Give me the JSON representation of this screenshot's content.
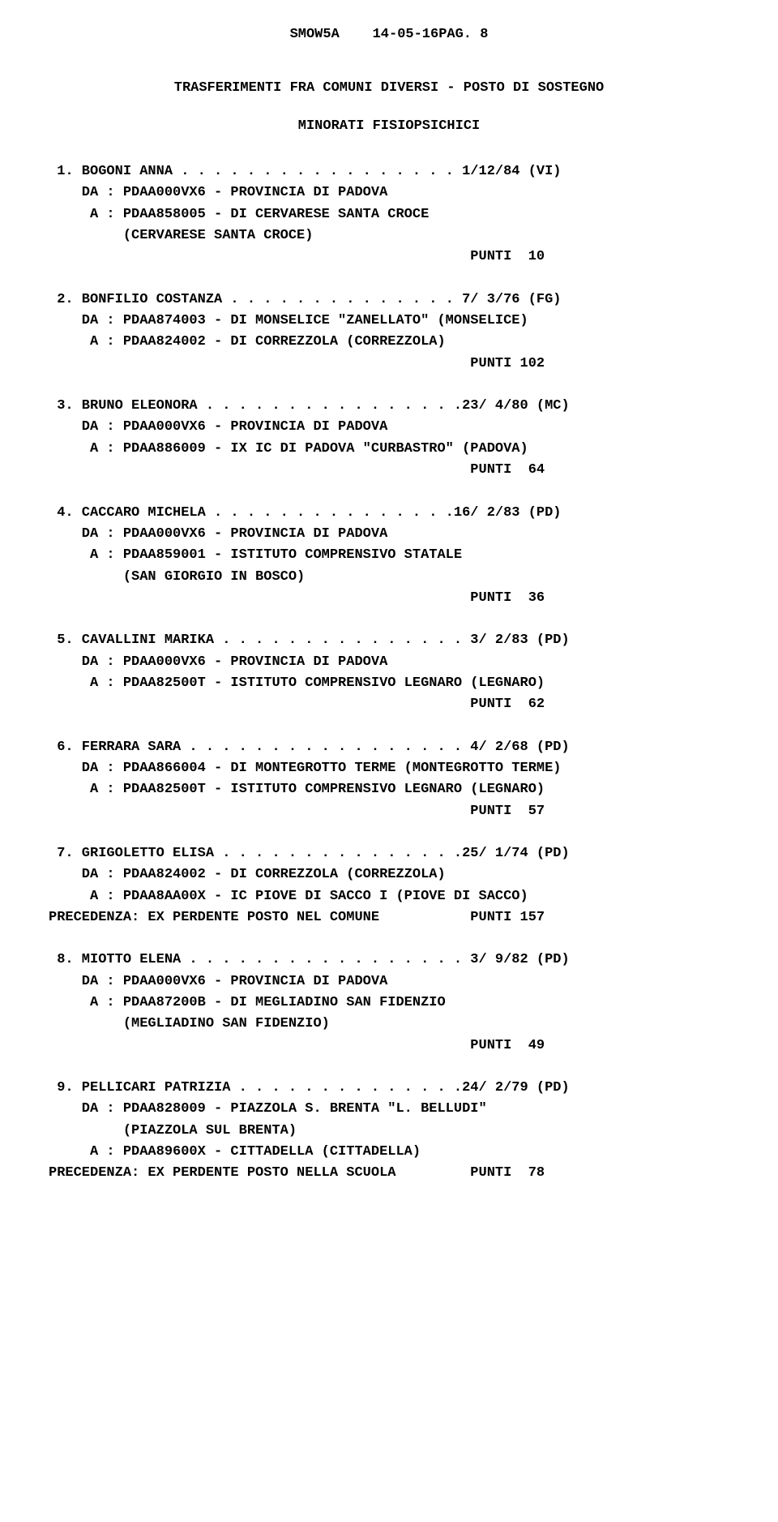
{
  "header": {
    "program": "SMOW5A",
    "date_page": "14-05-16PAG. 8"
  },
  "title": "TRASFERIMENTI FRA COMUNI DIVERSI - POSTO DI SOSTEGNO",
  "subtitle": "MINORATI FISIOPSICHICI",
  "entries": [
    {
      "num": " 1",
      "name": "BOGONI ANNA",
      "dots": " . . . . . . . . . . . . . . . . .",
      "code": " 1/12/84 (VI)",
      "da": "    DA : PDAA000VX6 - PROVINCIA DI PADOVA",
      "a": "     A : PDAA858005 - DI CERVARESE SANTA CROCE",
      "extra": "         (CERVARESE SANTA CROCE)",
      "punti_label": "PUNTI",
      "punti_val": " 10"
    },
    {
      "num": " 2",
      "name": "BONFILIO COSTANZA",
      "dots": " . . . . . . . . . . . . . .",
      "code": " 7/ 3/76 (FG)",
      "da": "    DA : PDAA874003 - DI MONSELICE \"ZANELLATO\" (MONSELICE)",
      "a": "     A : PDAA824002 - DI CORREZZOLA (CORREZZOLA)",
      "extra": "",
      "punti_label": "PUNTI",
      "punti_val": "102"
    },
    {
      "num": " 3",
      "name": "BRUNO ELEONORA",
      "dots": " . . . . . . . . . . . . . . . .",
      "code": "23/ 4/80 (MC)",
      "da": "    DA : PDAA000VX6 - PROVINCIA DI PADOVA",
      "a": "     A : PDAA886009 - IX IC DI PADOVA \"CURBASTRO\" (PADOVA)",
      "extra": "",
      "punti_label": "PUNTI",
      "punti_val": " 64"
    },
    {
      "num": " 4",
      "name": "CACCARO MICHELA",
      "dots": " . . . . . . . . . . . . . . .",
      "code": "16/ 2/83 (PD)",
      "da": "    DA : PDAA000VX6 - PROVINCIA DI PADOVA",
      "a": "     A : PDAA859001 - ISTITUTO COMPRENSIVO STATALE",
      "extra": "         (SAN GIORGIO IN BOSCO)",
      "punti_label": "PUNTI",
      "punti_val": " 36"
    },
    {
      "num": " 5",
      "name": "CAVALLINI MARIKA",
      "dots": " . . . . . . . . . . . . . . .",
      "code": " 3/ 2/83 (PD)",
      "da": "    DA : PDAA000VX6 - PROVINCIA DI PADOVA",
      "a": "     A : PDAA82500T - ISTITUTO COMPRENSIVO LEGNARO (LEGNARO)",
      "extra": "",
      "punti_label": "PUNTI",
      "punti_val": " 62"
    },
    {
      "num": " 6",
      "name": "FERRARA SARA",
      "dots": " . . . . . . . . . . . . . . . . .",
      "code": " 4/ 2/68 (PD)",
      "da": "    DA : PDAA866004 - DI MONTEGROTTO TERME (MONTEGROTTO TERME)",
      "a": "     A : PDAA82500T - ISTITUTO COMPRENSIVO LEGNARO (LEGNARO)",
      "extra": "",
      "punti_label": "PUNTI",
      "punti_val": " 57"
    },
    {
      "num": " 7",
      "name": "GRIGOLETTO ELISA",
      "dots": " . . . . . . . . . . . . . . .",
      "code": "25/ 1/74 (PD)",
      "da": "    DA : PDAA824002 - DI CORREZZOLA (CORREZZOLA)",
      "a": "     A : PDAA8AA00X - IC PIOVE DI SACCO I (PIOVE DI SACCO)",
      "extra": "",
      "prec": "PRECEDENZA: EX PERDENTE POSTO NEL COMUNE",
      "punti_label": "PUNTI",
      "punti_val": "157"
    },
    {
      "num": " 8",
      "name": "MIOTTO ELENA",
      "dots": " . . . . . . . . . . . . . . . . .",
      "code": " 3/ 9/82 (PD)",
      "da": "    DA : PDAA000VX6 - PROVINCIA DI PADOVA",
      "a": "     A : PDAA87200B - DI MEGLIADINO SAN FIDENZIO",
      "extra": "         (MEGLIADINO SAN FIDENZIO)",
      "punti_label": "PUNTI",
      "punti_val": " 49"
    },
    {
      "num": " 9",
      "name": "PELLICARI PATRIZIA",
      "dots": " . . . . . . . . . . . . . .",
      "code": "24/ 2/79 (PD)",
      "da": "    DA : PDAA828009 - PIAZZOLA S. BRENTA \"L. BELLUDI\"",
      "a": "         (PIAZZOLA SUL BRENTA)",
      "extra": "     A : PDAA89600X - CITTADELLA (CITTADELLA)",
      "prec": "PRECEDENZA: EX PERDENTE POSTO NELLA SCUOLA",
      "punti_label": "PUNTI",
      "punti_val": " 78"
    }
  ]
}
